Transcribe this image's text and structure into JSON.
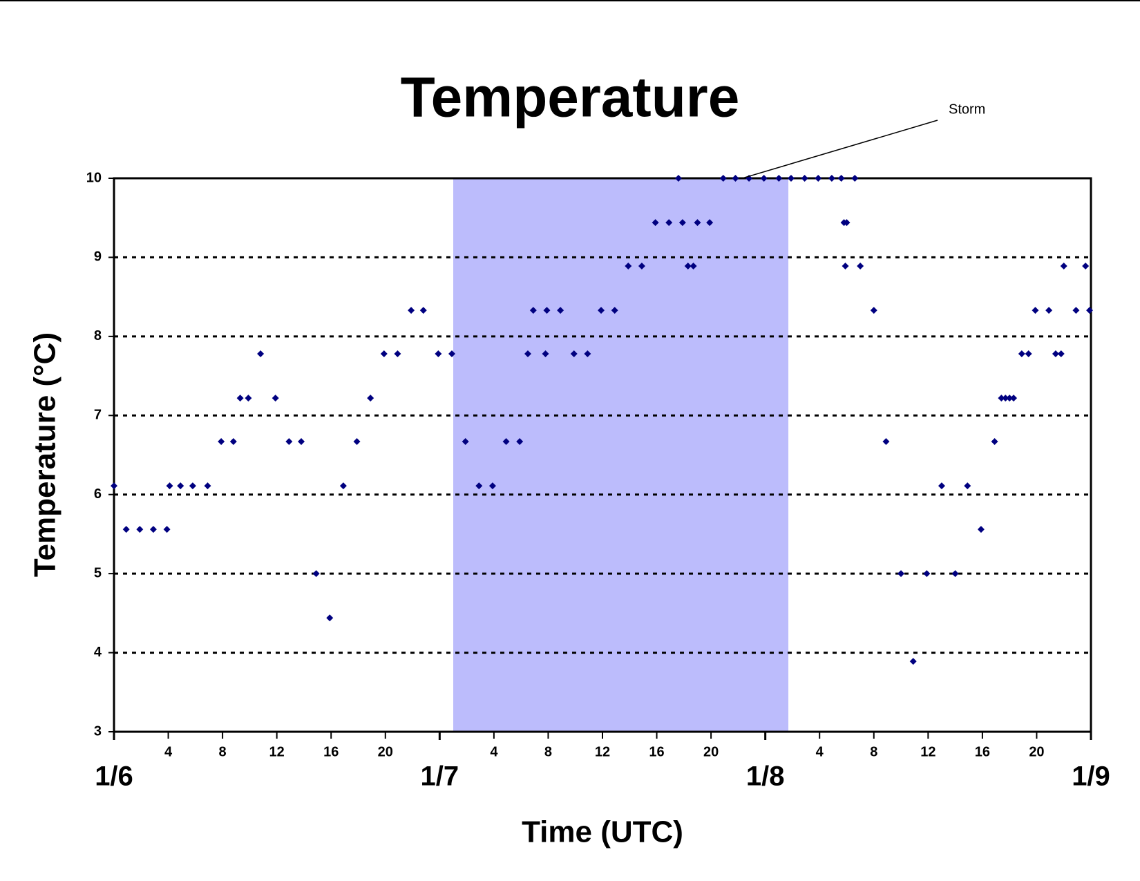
{
  "chart_data": {
    "type": "scatter",
    "title": "Temperature",
    "xlabel": "Time (UTC)",
    "ylabel": "Temperature (°C)",
    "color": "#000080",
    "marker": "diamond",
    "grid": true,
    "xlim": [
      0,
      72
    ],
    "ylim": [
      3,
      10
    ],
    "yticks": [
      3,
      4,
      5,
      6,
      7,
      8,
      9,
      10
    ],
    "xticks": [
      4,
      8,
      12,
      16,
      20,
      {
        "value": 28,
        "label": "4"
      },
      {
        "value": 32,
        "label": "8"
      },
      {
        "value": 36,
        "label": "12"
      },
      {
        "value": 40,
        "label": "16"
      },
      {
        "value": 44,
        "label": "20"
      },
      {
        "value": 52,
        "label": "4"
      },
      {
        "value": 56,
        "label": "8"
      },
      {
        "value": 60,
        "label": "12"
      },
      {
        "value": 64,
        "label": "16"
      },
      {
        "value": 68,
        "label": "20"
      }
    ],
    "date_ticks": [
      {
        "value": 0,
        "label": "1/6"
      },
      {
        "value": 24,
        "label": "1/7"
      },
      {
        "value": 48,
        "label": "1/8"
      },
      {
        "value": 72,
        "label": "1/9"
      }
    ],
    "shaded_span": [
      25,
      49.7
    ],
    "shade_color": "#bcbcfc",
    "annotation": {
      "text": "Storm",
      "x": 46.3,
      "y": 10
    },
    "x": [
      0,
      0.9,
      1.9,
      2.9,
      3.9,
      4.1,
      4.9,
      5.8,
      6.9,
      7.9,
      8.8,
      9.3,
      9.9,
      10.8,
      11.9,
      12.9,
      13.8,
      14.9,
      15.9,
      16.9,
      17.9,
      18.9,
      19.9,
      20.9,
      21.9,
      22.8,
      23.9,
      24.9,
      25.9,
      26.9,
      27.9,
      28.9,
      29.9,
      30.5,
      30.9,
      31.8,
      31.9,
      32.9,
      33.9,
      34.9,
      35.9,
      36.9,
      37.9,
      38.9,
      39.9,
      40.9,
      41.6,
      41.9,
      42.3,
      42.7,
      43.0,
      43.9,
      44.9,
      45.8,
      46.8,
      47.9,
      49.0,
      49.9,
      50.9,
      51.9,
      52.9,
      53.6,
      53.8,
      53.9,
      54.0,
      54.6,
      55.0,
      56.0,
      56.9,
      58.0,
      58.9,
      59.9,
      61.0,
      62.0,
      62.9,
      63.9,
      64.9,
      65.4,
      65.7,
      66.0,
      66.3,
      66.9,
      67.4,
      67.9,
      68.9,
      69.4,
      69.8,
      70.0,
      70.9,
      71.6,
      71.9
    ],
    "values": [
      6.11,
      5.56,
      5.56,
      5.56,
      5.56,
      6.11,
      6.11,
      6.11,
      6.11,
      6.67,
      6.67,
      7.22,
      7.22,
      7.78,
      7.22,
      6.67,
      6.67,
      5,
      4.44,
      6.11,
      6.67,
      7.22,
      7.78,
      7.78,
      8.33,
      8.33,
      7.78,
      7.78,
      6.67,
      6.11,
      6.11,
      6.67,
      6.67,
      7.78,
      8.33,
      7.78,
      8.33,
      8.33,
      7.78,
      7.78,
      8.33,
      8.33,
      8.89,
      8.89,
      9.44,
      9.44,
      10,
      9.44,
      8.89,
      8.89,
      9.44,
      9.44,
      10,
      10,
      10,
      10,
      10,
      10,
      10,
      10,
      10,
      10,
      9.44,
      8.89,
      9.44,
      10,
      8.89,
      8.33,
      6.67,
      5,
      3.89,
      5,
      6.11,
      5,
      6.11,
      5.56,
      6.67,
      7.22,
      7.22,
      7.22,
      7.22,
      7.78,
      7.78,
      8.33,
      8.33,
      7.78,
      7.78,
      8.89,
      8.33,
      8.89,
      8.33
    ]
  }
}
